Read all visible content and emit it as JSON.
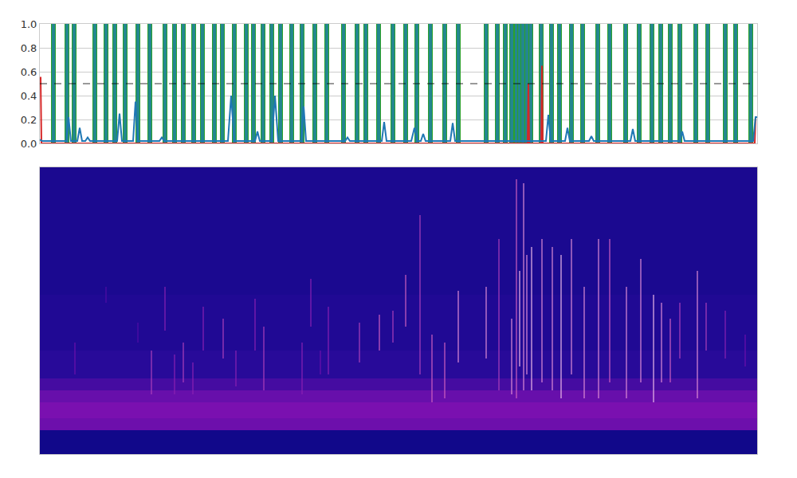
{
  "chart_data": [
    {
      "type": "line",
      "xlim": [
        0,
        900
      ],
      "ylim": [
        0,
        1
      ],
      "yticks": [
        {
          "value": 0,
          "label": "0.0"
        },
        0.2,
        0.4,
        0.6,
        0.8,
        {
          "value": 1,
          "label": "1.0"
        }
      ],
      "grid": true,
      "tick_labels": "y",
      "reference_line": {
        "y": 0.5,
        "line_style": "dashed",
        "color": "#000000"
      },
      "series": [
        {
          "type": "bar",
          "color": "#23878f",
          "x": [
            17,
            34,
            43,
            69,
            83,
            94,
            107,
            123,
            138,
            157,
            169,
            180,
            193,
            204,
            219,
            229,
            244,
            259,
            268,
            280,
            291,
            302,
            316,
            329,
            345,
            360,
            381,
            398,
            409,
            425,
            443,
            459,
            473,
            490,
            508,
            525,
            560,
            574,
            584,
            592,
            598,
            602,
            606,
            611,
            616,
            629,
            642,
            652,
            667,
            681,
            700,
            715,
            735,
            752,
            768,
            779,
            791,
            803,
            823,
            838,
            860,
            873,
            892
          ],
          "values": [
            1,
            1,
            1,
            1,
            1,
            1,
            1,
            1,
            1,
            1,
            1,
            1,
            1,
            1,
            1,
            1,
            1,
            1,
            1,
            1,
            1,
            1,
            1,
            1,
            1,
            1,
            1,
            1,
            1,
            1,
            1,
            1,
            1,
            1,
            1,
            1,
            1,
            1,
            1,
            1,
            1,
            1,
            1,
            1,
            1,
            1,
            1,
            1,
            1,
            1,
            1,
            1,
            1,
            1,
            1,
            1,
            1,
            1,
            1,
            1,
            1,
            1,
            1
          ]
        },
        {
          "type": "line",
          "color": "#d62728",
          "x": [
            0,
            1,
            2,
            612,
            613,
            614,
            629,
            630,
            631,
            897,
            898,
            900
          ],
          "values": [
            0.55,
            0.55,
            0,
            0,
            0.5,
            0,
            0,
            0.65,
            0,
            0,
            0.22,
            0.22
          ]
        },
        {
          "type": "line",
          "color": "#1f77b4",
          "x": [
            0,
            3,
            33,
            36,
            39,
            47,
            50,
            53,
            57,
            60,
            63,
            97,
            100,
            103,
            117,
            120,
            123,
            150,
            153,
            156,
            236,
            240,
            244,
            270,
            273,
            276,
            291,
            295,
            299,
            328,
            331,
            334,
            383,
            386,
            389,
            429,
            432,
            435,
            466,
            470,
            474,
            478,
            481,
            484,
            515,
            518,
            521,
            635,
            638,
            641,
            659,
            662,
            665,
            689,
            692,
            695,
            741,
            744,
            747,
            803,
            806,
            809,
            895,
            898,
            900
          ],
          "values": [
            0.03,
            0.02,
            0.02,
            0.22,
            0.02,
            0.02,
            0.13,
            0.02,
            0.02,
            0.05,
            0.02,
            0.02,
            0.25,
            0.02,
            0.02,
            0.35,
            0.02,
            0.02,
            0.05,
            0.02,
            0.02,
            0.4,
            0.02,
            0.02,
            0.1,
            0.02,
            0.02,
            0.4,
            0.02,
            0.02,
            0.31,
            0.02,
            0.02,
            0.05,
            0.02,
            0.02,
            0.18,
            0.02,
            0.02,
            0.13,
            0.02,
            0.02,
            0.08,
            0.02,
            0.02,
            0.17,
            0.02,
            0.02,
            0.24,
            0.02,
            0.02,
            0.13,
            0.02,
            0.02,
            0.06,
            0.02,
            0.02,
            0.12,
            0.02,
            0.02,
            0.1,
            0.02,
            0.02,
            0.22,
            0.22
          ]
        }
      ]
    },
    {
      "type": "heatmap",
      "xlim": [
        0,
        900
      ],
      "ylim": [
        0,
        360
      ],
      "tick_labels": false,
      "color_range": [
        0,
        1
      ],
      "x_edges": [
        0,
        900
      ],
      "y_edges": [
        0,
        30,
        45,
        65,
        80,
        95,
        130,
        200,
        360
      ],
      "cells": [
        [
          0.02
        ],
        [
          0.4
        ],
        [
          0.45
        ],
        [
          0.38
        ],
        [
          0.25
        ],
        [
          0.14
        ],
        [
          0.1
        ],
        [
          0.07
        ]
      ],
      "clicks": [
        {
          "x": 44,
          "y0": 100,
          "y1": 140,
          "level": 0.4
        },
        {
          "x": 83,
          "y0": 190,
          "y1": 210,
          "level": 0.3
        },
        {
          "x": 123,
          "y0": 140,
          "y1": 165,
          "level": 0.3
        },
        {
          "x": 140,
          "y0": 75,
          "y1": 130,
          "level": 0.6
        },
        {
          "x": 157,
          "y0": 155,
          "y1": 210,
          "level": 0.5
        },
        {
          "x": 169,
          "y0": 75,
          "y1": 125,
          "level": 0.5
        },
        {
          "x": 180,
          "y0": 90,
          "y1": 140,
          "level": 0.6
        },
        {
          "x": 192,
          "y0": 75,
          "y1": 115,
          "level": 0.5
        },
        {
          "x": 205,
          "y0": 130,
          "y1": 185,
          "level": 0.5
        },
        {
          "x": 230,
          "y0": 120,
          "y1": 170,
          "level": 0.6
        },
        {
          "x": 246,
          "y0": 85,
          "y1": 130,
          "level": 0.5
        },
        {
          "x": 270,
          "y0": 130,
          "y1": 195,
          "level": 0.5
        },
        {
          "x": 281,
          "y0": 80,
          "y1": 160,
          "level": 0.6
        },
        {
          "x": 329,
          "y0": 75,
          "y1": 140,
          "level": 0.5
        },
        {
          "x": 340,
          "y0": 160,
          "y1": 220,
          "level": 0.5
        },
        {
          "x": 352,
          "y0": 100,
          "y1": 130,
          "level": 0.4
        },
        {
          "x": 362,
          "y0": 100,
          "y1": 185,
          "level": 0.5
        },
        {
          "x": 401,
          "y0": 115,
          "y1": 165,
          "level": 0.6
        },
        {
          "x": 426,
          "y0": 130,
          "y1": 175,
          "level": 0.7
        },
        {
          "x": 443,
          "y0": 140,
          "y1": 180,
          "level": 0.6
        },
        {
          "x": 459,
          "y0": 160,
          "y1": 225,
          "level": 0.7
        },
        {
          "x": 477,
          "y0": 100,
          "y1": 300,
          "level": 0.6
        },
        {
          "x": 492,
          "y0": 65,
          "y1": 150,
          "level": 0.7
        },
        {
          "x": 508,
          "y0": 70,
          "y1": 140,
          "level": 0.7
        },
        {
          "x": 525,
          "y0": 115,
          "y1": 205,
          "level": 0.8
        },
        {
          "x": 560,
          "y0": 120,
          "y1": 210,
          "level": 0.8
        },
        {
          "x": 576,
          "y0": 80,
          "y1": 270,
          "level": 0.6
        },
        {
          "x": 592,
          "y0": 75,
          "y1": 170,
          "level": 0.8
        },
        {
          "x": 598,
          "y0": 70,
          "y1": 345,
          "level": 0.7
        },
        {
          "x": 602,
          "y0": 110,
          "y1": 230,
          "level": 0.9
        },
        {
          "x": 607,
          "y0": 80,
          "y1": 340,
          "level": 0.8
        },
        {
          "x": 611,
          "y0": 100,
          "y1": 250,
          "level": 0.8
        },
        {
          "x": 617,
          "y0": 80,
          "y1": 260,
          "level": 0.9
        },
        {
          "x": 630,
          "y0": 90,
          "y1": 270,
          "level": 0.8
        },
        {
          "x": 643,
          "y0": 80,
          "y1": 260,
          "level": 0.8
        },
        {
          "x": 654,
          "y0": 70,
          "y1": 250,
          "level": 0.9
        },
        {
          "x": 667,
          "y0": 100,
          "y1": 270,
          "level": 0.8
        },
        {
          "x": 683,
          "y0": 70,
          "y1": 210,
          "level": 0.8
        },
        {
          "x": 701,
          "y0": 70,
          "y1": 270,
          "level": 0.8
        },
        {
          "x": 715,
          "y0": 90,
          "y1": 270,
          "level": 0.7
        },
        {
          "x": 736,
          "y0": 70,
          "y1": 210,
          "level": 0.8
        },
        {
          "x": 754,
          "y0": 90,
          "y1": 245,
          "level": 0.8
        },
        {
          "x": 770,
          "y0": 65,
          "y1": 200,
          "level": 0.9
        },
        {
          "x": 780,
          "y0": 90,
          "y1": 190,
          "level": 0.8
        },
        {
          "x": 791,
          "y0": 90,
          "y1": 170,
          "level": 0.7
        },
        {
          "x": 803,
          "y0": 120,
          "y1": 190,
          "level": 0.6
        },
        {
          "x": 825,
          "y0": 70,
          "y1": 230,
          "level": 0.8
        },
        {
          "x": 836,
          "y0": 130,
          "y1": 190,
          "level": 0.6
        },
        {
          "x": 860,
          "y0": 120,
          "y1": 180,
          "level": 0.5
        },
        {
          "x": 885,
          "y0": 110,
          "y1": 150,
          "level": 0.4
        }
      ]
    }
  ]
}
